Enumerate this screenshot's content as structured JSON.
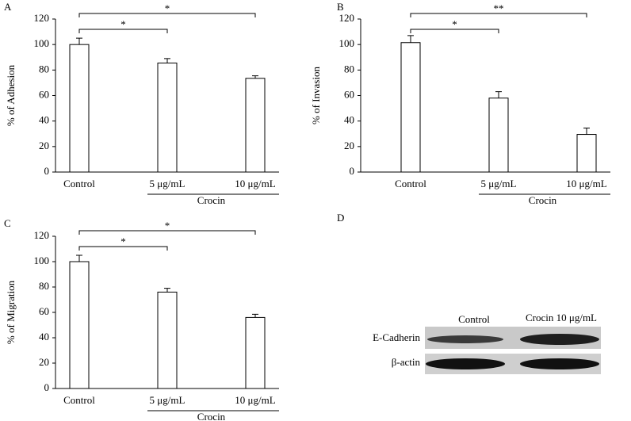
{
  "chart_data": [
    {
      "type": "bar",
      "panel": "A",
      "ylabel": "% of Adhesion",
      "categories": [
        "Control",
        "5 μg/mL",
        "10 μg/mL"
      ],
      "values": [
        100,
        85.5,
        73.5
      ],
      "errors": [
        5,
        3.5,
        2
      ],
      "group_label": "Crocin",
      "significance": [
        "*",
        "*"
      ],
      "ylim": [
        0,
        120
      ],
      "yticks": [
        0,
        20,
        40,
        60,
        80,
        100,
        120
      ],
      "color": "#ffffff"
    },
    {
      "type": "bar",
      "panel": "B",
      "ylabel": "% of Invasion",
      "categories": [
        "Control",
        "5 μg/mL",
        "10 μg/mL"
      ],
      "values": [
        101.5,
        58,
        29.5
      ],
      "errors": [
        5.5,
        5,
        5
      ],
      "group_label": "Crocin",
      "significance": [
        "*",
        "**"
      ],
      "ylim": [
        0,
        120
      ],
      "yticks": [
        0,
        20,
        40,
        60,
        80,
        100,
        120
      ],
      "color": "#ffffff"
    },
    {
      "type": "bar",
      "panel": "C",
      "ylabel": "% of Migration",
      "categories": [
        "Control",
        "5 μg/mL",
        "10 μg/mL"
      ],
      "values": [
        100,
        76,
        56
      ],
      "errors": [
        5,
        3,
        2.5
      ],
      "group_label": "Crocin",
      "significance": [
        "*",
        "*"
      ],
      "ylim": [
        0,
        120
      ],
      "yticks": [
        0,
        20,
        40,
        60,
        80,
        100,
        120
      ],
      "color": "#ffffff"
    }
  ],
  "blot_panel": {
    "panel": "D",
    "columns": [
      "Control",
      "Crocin 10 μg/mL"
    ],
    "rows": [
      "E-Cadherin",
      "β-actin"
    ]
  }
}
